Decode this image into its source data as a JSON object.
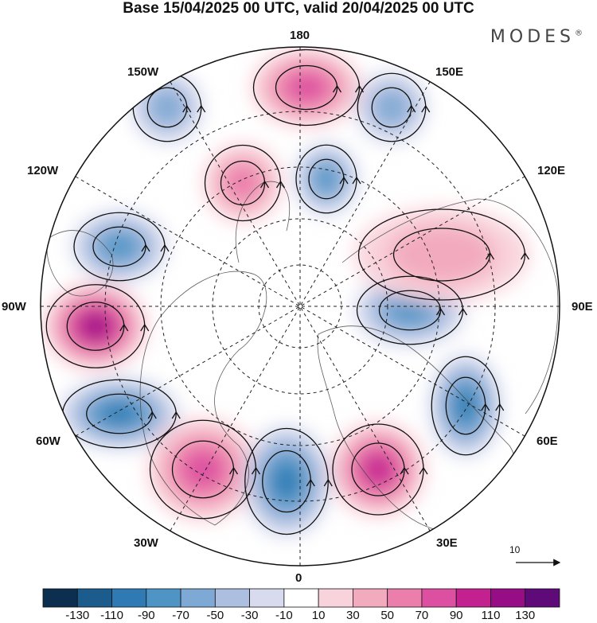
{
  "title": "Base 15/04/2025 00 UTC, valid 20/04/2025 00 UTC",
  "brand": "MODES",
  "brand_mark": "®",
  "map": {
    "projection": "north-polar-stereographic",
    "longitude_labels": {
      "lon_0": "0",
      "lon_30E": "30E",
      "lon_60E": "60E",
      "lon_90E": "90E",
      "lon_120E": "120E",
      "lon_150E": "150E",
      "lon_180": "180",
      "lon_150W": "150W",
      "lon_120W": "120W",
      "lon_90W": "90W",
      "lon_60W": "60W",
      "lon_30W": "30W"
    },
    "wind_reference_vector": "10",
    "anomaly_centers": [
      {
        "name": "pole-sector-180-positive",
        "value": 70
      },
      {
        "name": "150e-negative",
        "value": -50
      },
      {
        "name": "150w-negative",
        "value": -50
      },
      {
        "name": "165w-positive",
        "value": 50
      },
      {
        "name": "east-siberia-negative",
        "value": -70
      },
      {
        "name": "120w-negative",
        "value": -70
      },
      {
        "name": "90w-positive",
        "value": 110
      },
      {
        "name": "60w-negative",
        "value": -90
      },
      {
        "name": "atlantic-positive",
        "value": 70
      },
      {
        "name": "europe-negative",
        "value": -90
      },
      {
        "name": "mediterranean-positive",
        "value": 90
      },
      {
        "name": "60e-negative",
        "value": -90
      },
      {
        "name": "90e-negative",
        "value": -70
      },
      {
        "name": "asia-positive",
        "value": 30
      }
    ]
  },
  "colorbar": {
    "tick_labels": [
      "-130",
      "-110",
      "-90",
      "-70",
      "-50",
      "-30",
      "-10",
      "10",
      "30",
      "50",
      "70",
      "90",
      "110",
      "130"
    ],
    "colors": [
      "#0d2f4f",
      "#1b5c8c",
      "#2f7ab3",
      "#4e95c6",
      "#7ea9d4",
      "#adbfe0",
      "#d8daee",
      "#ffffff",
      "#f9d3dc",
      "#f2aabd",
      "#ec7eac",
      "#dd4fa0",
      "#c3218f",
      "#960d86",
      "#5e0a78"
    ]
  }
}
